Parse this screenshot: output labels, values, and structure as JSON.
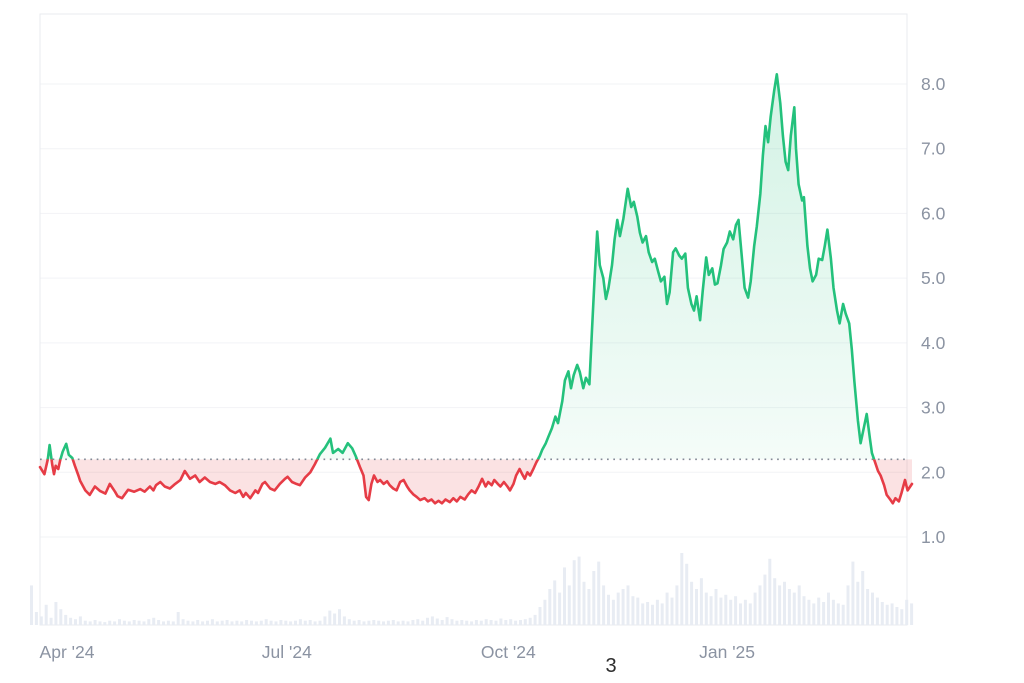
{
  "page_number": "3",
  "chart_data": {
    "type": "line",
    "title": "",
    "xlabel": "",
    "ylabel": "",
    "legend": "none",
    "grid": "horizontal",
    "y_ticks": [
      8.0,
      7.0,
      6.0,
      5.0,
      4.0,
      3.0,
      2.0,
      1.0
    ],
    "y_tick_labels": [
      "8.0",
      "7.0",
      "6.0",
      "5.0",
      "4.0",
      "3.0",
      "2.0",
      "1.0"
    ],
    "ylim": [
      1.0,
      9.1
    ],
    "x_tick_labels": [
      {
        "label": "Apr '24",
        "pos": 0.031
      },
      {
        "label": "Jul '24",
        "pos": 0.283
      },
      {
        "label": "Oct '24",
        "pos": 0.537
      },
      {
        "label": "Jan '25",
        "pos": 0.788
      }
    ],
    "baseline_value": 2.2,
    "series": [
      {
        "name": "price",
        "points": [
          [
            0,
            2.08
          ],
          [
            0.005,
            1.97
          ],
          [
            0.009,
            2.2
          ],
          [
            0.011,
            2.42
          ],
          [
            0.014,
            2.12
          ],
          [
            0.016,
            1.97
          ],
          [
            0.018,
            2.1
          ],
          [
            0.021,
            2.05
          ],
          [
            0.023,
            2.18
          ],
          [
            0.026,
            2.32
          ],
          [
            0.03,
            2.44
          ],
          [
            0.033,
            2.27
          ],
          [
            0.037,
            2.22
          ],
          [
            0.04,
            2.1
          ],
          [
            0.044,
            1.95
          ],
          [
            0.046,
            1.87
          ],
          [
            0.052,
            1.72
          ],
          [
            0.057,
            1.65
          ],
          [
            0.063,
            1.78
          ],
          [
            0.069,
            1.71
          ],
          [
            0.075,
            1.67
          ],
          [
            0.08,
            1.82
          ],
          [
            0.086,
            1.7
          ],
          [
            0.089,
            1.63
          ],
          [
            0.094,
            1.6
          ],
          [
            0.101,
            1.73
          ],
          [
            0.108,
            1.7
          ],
          [
            0.115,
            1.74
          ],
          [
            0.12,
            1.7
          ],
          [
            0.126,
            1.78
          ],
          [
            0.13,
            1.72
          ],
          [
            0.133,
            1.8
          ],
          [
            0.138,
            1.85
          ],
          [
            0.143,
            1.78
          ],
          [
            0.149,
            1.75
          ],
          [
            0.155,
            1.82
          ],
          [
            0.161,
            1.88
          ],
          [
            0.166,
            2.02
          ],
          [
            0.172,
            1.9
          ],
          [
            0.178,
            1.95
          ],
          [
            0.183,
            1.85
          ],
          [
            0.189,
            1.92
          ],
          [
            0.195,
            1.85
          ],
          [
            0.201,
            1.82
          ],
          [
            0.206,
            1.85
          ],
          [
            0.212,
            1.8
          ],
          [
            0.218,
            1.72
          ],
          [
            0.224,
            1.68
          ],
          [
            0.229,
            1.72
          ],
          [
            0.233,
            1.62
          ],
          [
            0.236,
            1.68
          ],
          [
            0.241,
            1.6
          ],
          [
            0.247,
            1.72
          ],
          [
            0.25,
            1.68
          ],
          [
            0.255,
            1.82
          ],
          [
            0.258,
            1.85
          ],
          [
            0.264,
            1.75
          ],
          [
            0.269,
            1.72
          ],
          [
            0.275,
            1.82
          ],
          [
            0.281,
            1.9
          ],
          [
            0.284,
            1.93
          ],
          [
            0.289,
            1.85
          ],
          [
            0.294,
            1.82
          ],
          [
            0.298,
            1.8
          ],
          [
            0.304,
            1.92
          ],
          [
            0.31,
            2.0
          ],
          [
            0.315,
            2.12
          ],
          [
            0.321,
            2.28
          ],
          [
            0.327,
            2.38
          ],
          [
            0.333,
            2.52
          ],
          [
            0.336,
            2.3
          ],
          [
            0.342,
            2.36
          ],
          [
            0.347,
            2.3
          ],
          [
            0.353,
            2.45
          ],
          [
            0.358,
            2.37
          ],
          [
            0.362,
            2.25
          ],
          [
            0.367,
            2.08
          ],
          [
            0.371,
            1.95
          ],
          [
            0.374,
            1.62
          ],
          [
            0.377,
            1.57
          ],
          [
            0.38,
            1.82
          ],
          [
            0.383,
            1.95
          ],
          [
            0.387,
            1.85
          ],
          [
            0.39,
            1.88
          ],
          [
            0.394,
            1.82
          ],
          [
            0.398,
            1.86
          ],
          [
            0.401,
            1.8
          ],
          [
            0.405,
            1.75
          ],
          [
            0.409,
            1.72
          ],
          [
            0.413,
            1.85
          ],
          [
            0.417,
            1.88
          ],
          [
            0.421,
            1.78
          ],
          [
            0.424,
            1.72
          ],
          [
            0.428,
            1.66
          ],
          [
            0.432,
            1.62
          ],
          [
            0.436,
            1.57
          ],
          [
            0.441,
            1.6
          ],
          [
            0.445,
            1.55
          ],
          [
            0.449,
            1.58
          ],
          [
            0.453,
            1.52
          ],
          [
            0.457,
            1.56
          ],
          [
            0.461,
            1.52
          ],
          [
            0.465,
            1.58
          ],
          [
            0.47,
            1.54
          ],
          [
            0.474,
            1.6
          ],
          [
            0.478,
            1.55
          ],
          [
            0.482,
            1.62
          ],
          [
            0.487,
            1.58
          ],
          [
            0.491,
            1.66
          ],
          [
            0.495,
            1.72
          ],
          [
            0.499,
            1.68
          ],
          [
            0.503,
            1.78
          ],
          [
            0.507,
            1.9
          ],
          [
            0.511,
            1.78
          ],
          [
            0.514,
            1.85
          ],
          [
            0.518,
            1.8
          ],
          [
            0.521,
            1.88
          ],
          [
            0.525,
            1.82
          ],
          [
            0.528,
            1.78
          ],
          [
            0.532,
            1.85
          ],
          [
            0.536,
            1.78
          ],
          [
            0.539,
            1.72
          ],
          [
            0.543,
            1.82
          ],
          [
            0.546,
            1.95
          ],
          [
            0.55,
            2.05
          ],
          [
            0.553,
            1.97
          ],
          [
            0.556,
            1.9
          ],
          [
            0.559,
            2.0
          ],
          [
            0.562,
            1.95
          ],
          [
            0.566,
            2.06
          ],
          [
            0.569,
            2.15
          ],
          [
            0.573,
            2.25
          ],
          [
            0.576,
            2.35
          ],
          [
            0.58,
            2.45
          ],
          [
            0.583,
            2.55
          ],
          [
            0.587,
            2.68
          ],
          [
            0.591,
            2.86
          ],
          [
            0.594,
            2.76
          ],
          [
            0.599,
            3.1
          ],
          [
            0.602,
            3.42
          ],
          [
            0.606,
            3.56
          ],
          [
            0.609,
            3.3
          ],
          [
            0.612,
            3.5
          ],
          [
            0.616,
            3.66
          ],
          [
            0.619,
            3.55
          ],
          [
            0.623,
            3.3
          ],
          [
            0.626,
            3.46
          ],
          [
            0.63,
            3.36
          ],
          [
            0.633,
            4.2
          ],
          [
            0.636,
            5.0
          ],
          [
            0.639,
            5.72
          ],
          [
            0.642,
            5.2
          ],
          [
            0.646,
            5.0
          ],
          [
            0.649,
            4.68
          ],
          [
            0.652,
            4.85
          ],
          [
            0.656,
            5.2
          ],
          [
            0.659,
            5.6
          ],
          [
            0.662,
            5.9
          ],
          [
            0.665,
            5.65
          ],
          [
            0.669,
            5.92
          ],
          [
            0.672,
            6.2
          ],
          [
            0.674,
            6.38
          ],
          [
            0.678,
            6.1
          ],
          [
            0.681,
            6.18
          ],
          [
            0.685,
            5.95
          ],
          [
            0.688,
            5.7
          ],
          [
            0.691,
            5.55
          ],
          [
            0.695,
            5.65
          ],
          [
            0.698,
            5.4
          ],
          [
            0.702,
            5.25
          ],
          [
            0.705,
            5.3
          ],
          [
            0.709,
            5.1
          ],
          [
            0.712,
            4.95
          ],
          [
            0.716,
            5.02
          ],
          [
            0.719,
            4.6
          ],
          [
            0.722,
            4.78
          ],
          [
            0.726,
            5.4
          ],
          [
            0.729,
            5.46
          ],
          [
            0.733,
            5.35
          ],
          [
            0.736,
            5.3
          ],
          [
            0.74,
            5.38
          ],
          [
            0.743,
            4.85
          ],
          [
            0.747,
            4.6
          ],
          [
            0.75,
            4.5
          ],
          [
            0.753,
            4.72
          ],
          [
            0.757,
            4.35
          ],
          [
            0.76,
            4.8
          ],
          [
            0.764,
            5.32
          ],
          [
            0.767,
            5.05
          ],
          [
            0.771,
            5.15
          ],
          [
            0.774,
            4.9
          ],
          [
            0.777,
            4.92
          ],
          [
            0.781,
            5.2
          ],
          [
            0.784,
            5.45
          ],
          [
            0.788,
            5.55
          ],
          [
            0.791,
            5.72
          ],
          [
            0.795,
            5.6
          ],
          [
            0.798,
            5.82
          ],
          [
            0.801,
            5.9
          ],
          [
            0.805,
            5.3
          ],
          [
            0.808,
            4.85
          ],
          [
            0.812,
            4.7
          ],
          [
            0.815,
            4.95
          ],
          [
            0.819,
            5.5
          ],
          [
            0.822,
            5.8
          ],
          [
            0.826,
            6.3
          ],
          [
            0.829,
            6.9
          ],
          [
            0.832,
            7.35
          ],
          [
            0.835,
            7.1
          ],
          [
            0.838,
            7.5
          ],
          [
            0.842,
            7.9
          ],
          [
            0.845,
            8.15
          ],
          [
            0.849,
            7.7
          ],
          [
            0.852,
            7.2
          ],
          [
            0.855,
            6.8
          ],
          [
            0.858,
            6.67
          ],
          [
            0.861,
            7.2
          ],
          [
            0.865,
            7.64
          ],
          [
            0.867,
            7.0
          ],
          [
            0.87,
            6.45
          ],
          [
            0.874,
            6.2
          ],
          [
            0.876,
            6.25
          ],
          [
            0.88,
            5.5
          ],
          [
            0.883,
            5.15
          ],
          [
            0.886,
            4.95
          ],
          [
            0.89,
            5.05
          ],
          [
            0.893,
            5.3
          ],
          [
            0.897,
            5.28
          ],
          [
            0.9,
            5.5
          ],
          [
            0.903,
            5.75
          ],
          [
            0.907,
            5.3
          ],
          [
            0.91,
            4.85
          ],
          [
            0.914,
            4.5
          ],
          [
            0.917,
            4.3
          ],
          [
            0.921,
            4.6
          ],
          [
            0.924,
            4.45
          ],
          [
            0.928,
            4.3
          ],
          [
            0.931,
            3.9
          ],
          [
            0.934,
            3.4
          ],
          [
            0.938,
            2.8
          ],
          [
            0.941,
            2.45
          ],
          [
            0.945,
            2.7
          ],
          [
            0.948,
            2.9
          ],
          [
            0.952,
            2.5
          ],
          [
            0.954,
            2.3
          ],
          [
            0.957,
            2.18
          ],
          [
            0.961,
            2.02
          ],
          [
            0.964,
            1.95
          ],
          [
            0.968,
            1.8
          ],
          [
            0.971,
            1.65
          ],
          [
            0.975,
            1.58
          ],
          [
            0.978,
            1.52
          ],
          [
            0.981,
            1.6
          ],
          [
            0.985,
            1.55
          ],
          [
            0.988,
            1.68
          ],
          [
            0.992,
            1.88
          ],
          [
            0.995,
            1.72
          ],
          [
            0.997,
            1.76
          ],
          [
            1,
            1.82
          ]
        ]
      }
    ],
    "volume_normalized": [
      0.55,
      0.18,
      0.12,
      0.28,
      0.1,
      0.32,
      0.22,
      0.14,
      0.1,
      0.08,
      0.12,
      0.06,
      0.05,
      0.07,
      0.05,
      0.04,
      0.06,
      0.05,
      0.08,
      0.06,
      0.05,
      0.07,
      0.06,
      0.05,
      0.08,
      0.1,
      0.07,
      0.05,
      0.06,
      0.05,
      0.18,
      0.08,
      0.06,
      0.05,
      0.07,
      0.05,
      0.06,
      0.08,
      0.05,
      0.06,
      0.07,
      0.05,
      0.06,
      0.05,
      0.07,
      0.06,
      0.05,
      0.06,
      0.08,
      0.06,
      0.05,
      0.07,
      0.06,
      0.05,
      0.06,
      0.08,
      0.06,
      0.07,
      0.05,
      0.06,
      0.12,
      0.2,
      0.16,
      0.22,
      0.12,
      0.08,
      0.06,
      0.07,
      0.05,
      0.06,
      0.07,
      0.06,
      0.05,
      0.06,
      0.07,
      0.05,
      0.06,
      0.05,
      0.07,
      0.08,
      0.06,
      0.1,
      0.12,
      0.09,
      0.07,
      0.11,
      0.08,
      0.06,
      0.07,
      0.06,
      0.05,
      0.07,
      0.06,
      0.08,
      0.07,
      0.06,
      0.09,
      0.07,
      0.08,
      0.06,
      0.07,
      0.08,
      0.1,
      0.14,
      0.25,
      0.35,
      0.5,
      0.62,
      0.45,
      0.8,
      0.55,
      0.9,
      0.95,
      0.6,
      0.5,
      0.75,
      0.88,
      0.55,
      0.42,
      0.35,
      0.45,
      0.5,
      0.55,
      0.4,
      0.38,
      0.3,
      0.32,
      0.28,
      0.35,
      0.3,
      0.45,
      0.38,
      0.55,
      1.0,
      0.85,
      0.6,
      0.5,
      0.65,
      0.45,
      0.4,
      0.5,
      0.38,
      0.42,
      0.35,
      0.4,
      0.3,
      0.35,
      0.3,
      0.45,
      0.55,
      0.7,
      0.92,
      0.65,
      0.55,
      0.6,
      0.5,
      0.45,
      0.55,
      0.4,
      0.35,
      0.3,
      0.38,
      0.32,
      0.45,
      0.35,
      0.3,
      0.28,
      0.55,
      0.88,
      0.6,
      0.75,
      0.5,
      0.45,
      0.38,
      0.32,
      0.28,
      0.3,
      0.25,
      0.22,
      0.35,
      0.3
    ],
    "colors": {
      "up_line": "#24c17c",
      "down_line": "#e63c46",
      "up_fill_top": "rgba(36,193,124,0.20)",
      "up_fill_bottom": "rgba(36,193,124,0.03)",
      "down_fill": "rgba(230,60,70,0.15)",
      "gridline": "#f2f3f6",
      "plot_border": "#e9ebef",
      "baseline_dots": "#838a96",
      "axis_text": "#8b93a2",
      "volume_bar": "#e8ecf3"
    }
  }
}
